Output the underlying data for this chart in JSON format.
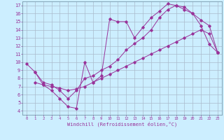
{
  "xlabel": "Windchill (Refroidissement éolien,°C)",
  "bg_color": "#cceeff",
  "grid_color": "#aabbcc",
  "line_color": "#993399",
  "xlim": [
    -0.5,
    23.5
  ],
  "ylim": [
    3.5,
    17.5
  ],
  "xticks": [
    0,
    1,
    2,
    3,
    4,
    5,
    6,
    7,
    8,
    9,
    10,
    11,
    12,
    13,
    14,
    15,
    16,
    17,
    18,
    19,
    20,
    21,
    22,
    23
  ],
  "yticks": [
    4,
    5,
    6,
    7,
    8,
    9,
    10,
    11,
    12,
    13,
    14,
    15,
    16,
    17
  ],
  "line1_x": [
    0,
    1,
    2,
    3,
    4,
    5,
    6,
    7,
    8,
    9,
    10,
    11,
    12,
    13,
    14,
    15,
    16,
    17,
    18,
    19,
    20,
    21,
    22,
    23
  ],
  "line1_y": [
    9.8,
    8.8,
    7.2,
    6.5,
    5.5,
    4.5,
    4.3,
    10.0,
    7.5,
    8.3,
    15.3,
    15.0,
    15.0,
    13.0,
    14.3,
    15.5,
    16.3,
    17.2,
    17.0,
    16.8,
    16.0,
    14.5,
    12.2,
    11.2
  ],
  "line2_x": [
    1,
    2,
    3,
    4,
    5,
    6,
    7,
    8,
    9,
    10,
    11,
    12,
    13,
    14,
    15,
    16,
    17,
    18,
    19,
    20,
    21,
    22,
    23
  ],
  "line2_y": [
    8.8,
    7.5,
    7.2,
    6.5,
    5.5,
    6.5,
    8.0,
    8.3,
    9.0,
    9.5,
    10.3,
    11.5,
    12.3,
    13.0,
    14.0,
    15.5,
    16.5,
    17.0,
    16.5,
    16.0,
    15.2,
    14.5,
    11.2
  ],
  "line3_x": [
    1,
    2,
    3,
    4,
    5,
    6,
    7,
    8,
    9,
    10,
    11,
    12,
    13,
    14,
    15,
    16,
    17,
    18,
    19,
    20,
    21,
    22,
    23
  ],
  "line3_y": [
    7.5,
    7.2,
    7.0,
    6.8,
    6.5,
    6.7,
    7.0,
    7.5,
    8.0,
    8.5,
    9.0,
    9.5,
    10.0,
    10.5,
    11.0,
    11.5,
    12.0,
    12.5,
    13.0,
    13.5,
    14.0,
    13.5,
    11.2
  ]
}
